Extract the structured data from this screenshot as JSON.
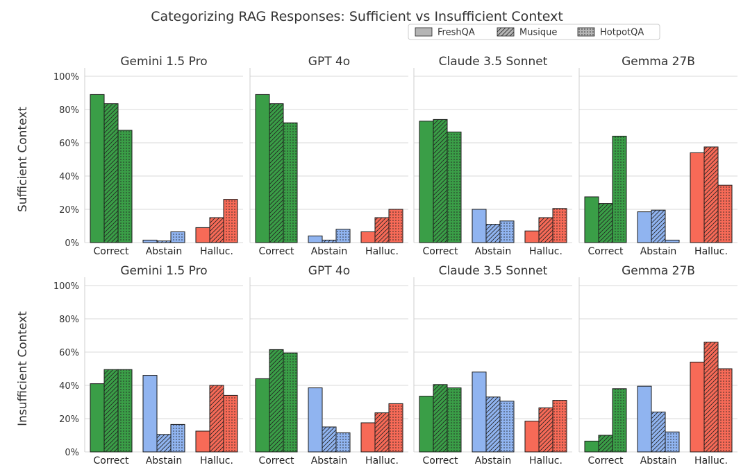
{
  "title": "Categorizing RAG Responses: Sufficient vs Insufficient Context",
  "legend": {
    "placement": "top-right",
    "entries": [
      {
        "name": "FreshQA",
        "pattern": "solid"
      },
      {
        "name": "Musique",
        "pattern": "hatch"
      },
      {
        "name": "HotpotQA",
        "pattern": "dots"
      }
    ]
  },
  "colors": {
    "correct": "#3a9e47",
    "abstain": "#90b4f0",
    "halluc": "#f76a57",
    "grid": "#d8d8d8",
    "axis": "#cfcfcf"
  },
  "row_labels": [
    "Sufficient Context",
    "Insufficient Context"
  ],
  "y_ticks": [
    "0%",
    "20%",
    "40%",
    "60%",
    "80%",
    "100%"
  ],
  "chart_data": {
    "type": "bar",
    "categories": [
      "Correct",
      "Abstain",
      "Halluc."
    ],
    "ylim": [
      0,
      100
    ],
    "ylabel_format": "percent",
    "grid": true,
    "datasets": [
      "FreshQA",
      "Musique",
      "HotpotQA"
    ],
    "panels": [
      {
        "row": "Sufficient Context",
        "model": "Gemini 1.5 Pro",
        "values": {
          "Correct": [
            89,
            83.5,
            67.5
          ],
          "Abstain": [
            1.5,
            1,
            6.5
          ],
          "Halluc.": [
            9,
            15,
            26
          ]
        }
      },
      {
        "row": "Sufficient Context",
        "model": "GPT 4o",
        "values": {
          "Correct": [
            89,
            83.5,
            72
          ],
          "Abstain": [
            4,
            1.5,
            8
          ],
          "Halluc.": [
            6.5,
            15,
            20
          ]
        }
      },
      {
        "row": "Sufficient Context",
        "model": "Claude 3.5 Sonnet",
        "values": {
          "Correct": [
            73,
            74,
            66.5
          ],
          "Abstain": [
            20,
            11,
            13
          ],
          "Halluc.": [
            7,
            15,
            20.5
          ]
        }
      },
      {
        "row": "Sufficient Context",
        "model": "Gemma 27B",
        "values": {
          "Correct": [
            27.5,
            23.5,
            64
          ],
          "Abstain": [
            18.5,
            19.5,
            1.5
          ],
          "Halluc.": [
            54,
            57.5,
            34.5
          ]
        }
      },
      {
        "row": "Insufficient Context",
        "model": "Gemini 1.5 Pro",
        "values": {
          "Correct": [
            41,
            49.5,
            49.5
          ],
          "Abstain": [
            46,
            10.5,
            16.5
          ],
          "Halluc.": [
            12.5,
            40,
            34
          ]
        }
      },
      {
        "row": "Insufficient Context",
        "model": "GPT 4o",
        "values": {
          "Correct": [
            44,
            61.5,
            59.5
          ],
          "Abstain": [
            38.5,
            15,
            11.5
          ],
          "Halluc.": [
            17.5,
            23.5,
            29
          ]
        }
      },
      {
        "row": "Insufficient Context",
        "model": "Claude 3.5 Sonnet",
        "values": {
          "Correct": [
            33.5,
            40.5,
            38.5
          ],
          "Abstain": [
            48,
            33,
            30.5
          ],
          "Halluc.": [
            18.5,
            26.5,
            31
          ]
        }
      },
      {
        "row": "Insufficient Context",
        "model": "Gemma 27B",
        "values": {
          "Correct": [
            6.5,
            10,
            38
          ],
          "Abstain": [
            39.5,
            24,
            12
          ],
          "Halluc.": [
            54,
            66,
            50
          ]
        }
      }
    ]
  }
}
